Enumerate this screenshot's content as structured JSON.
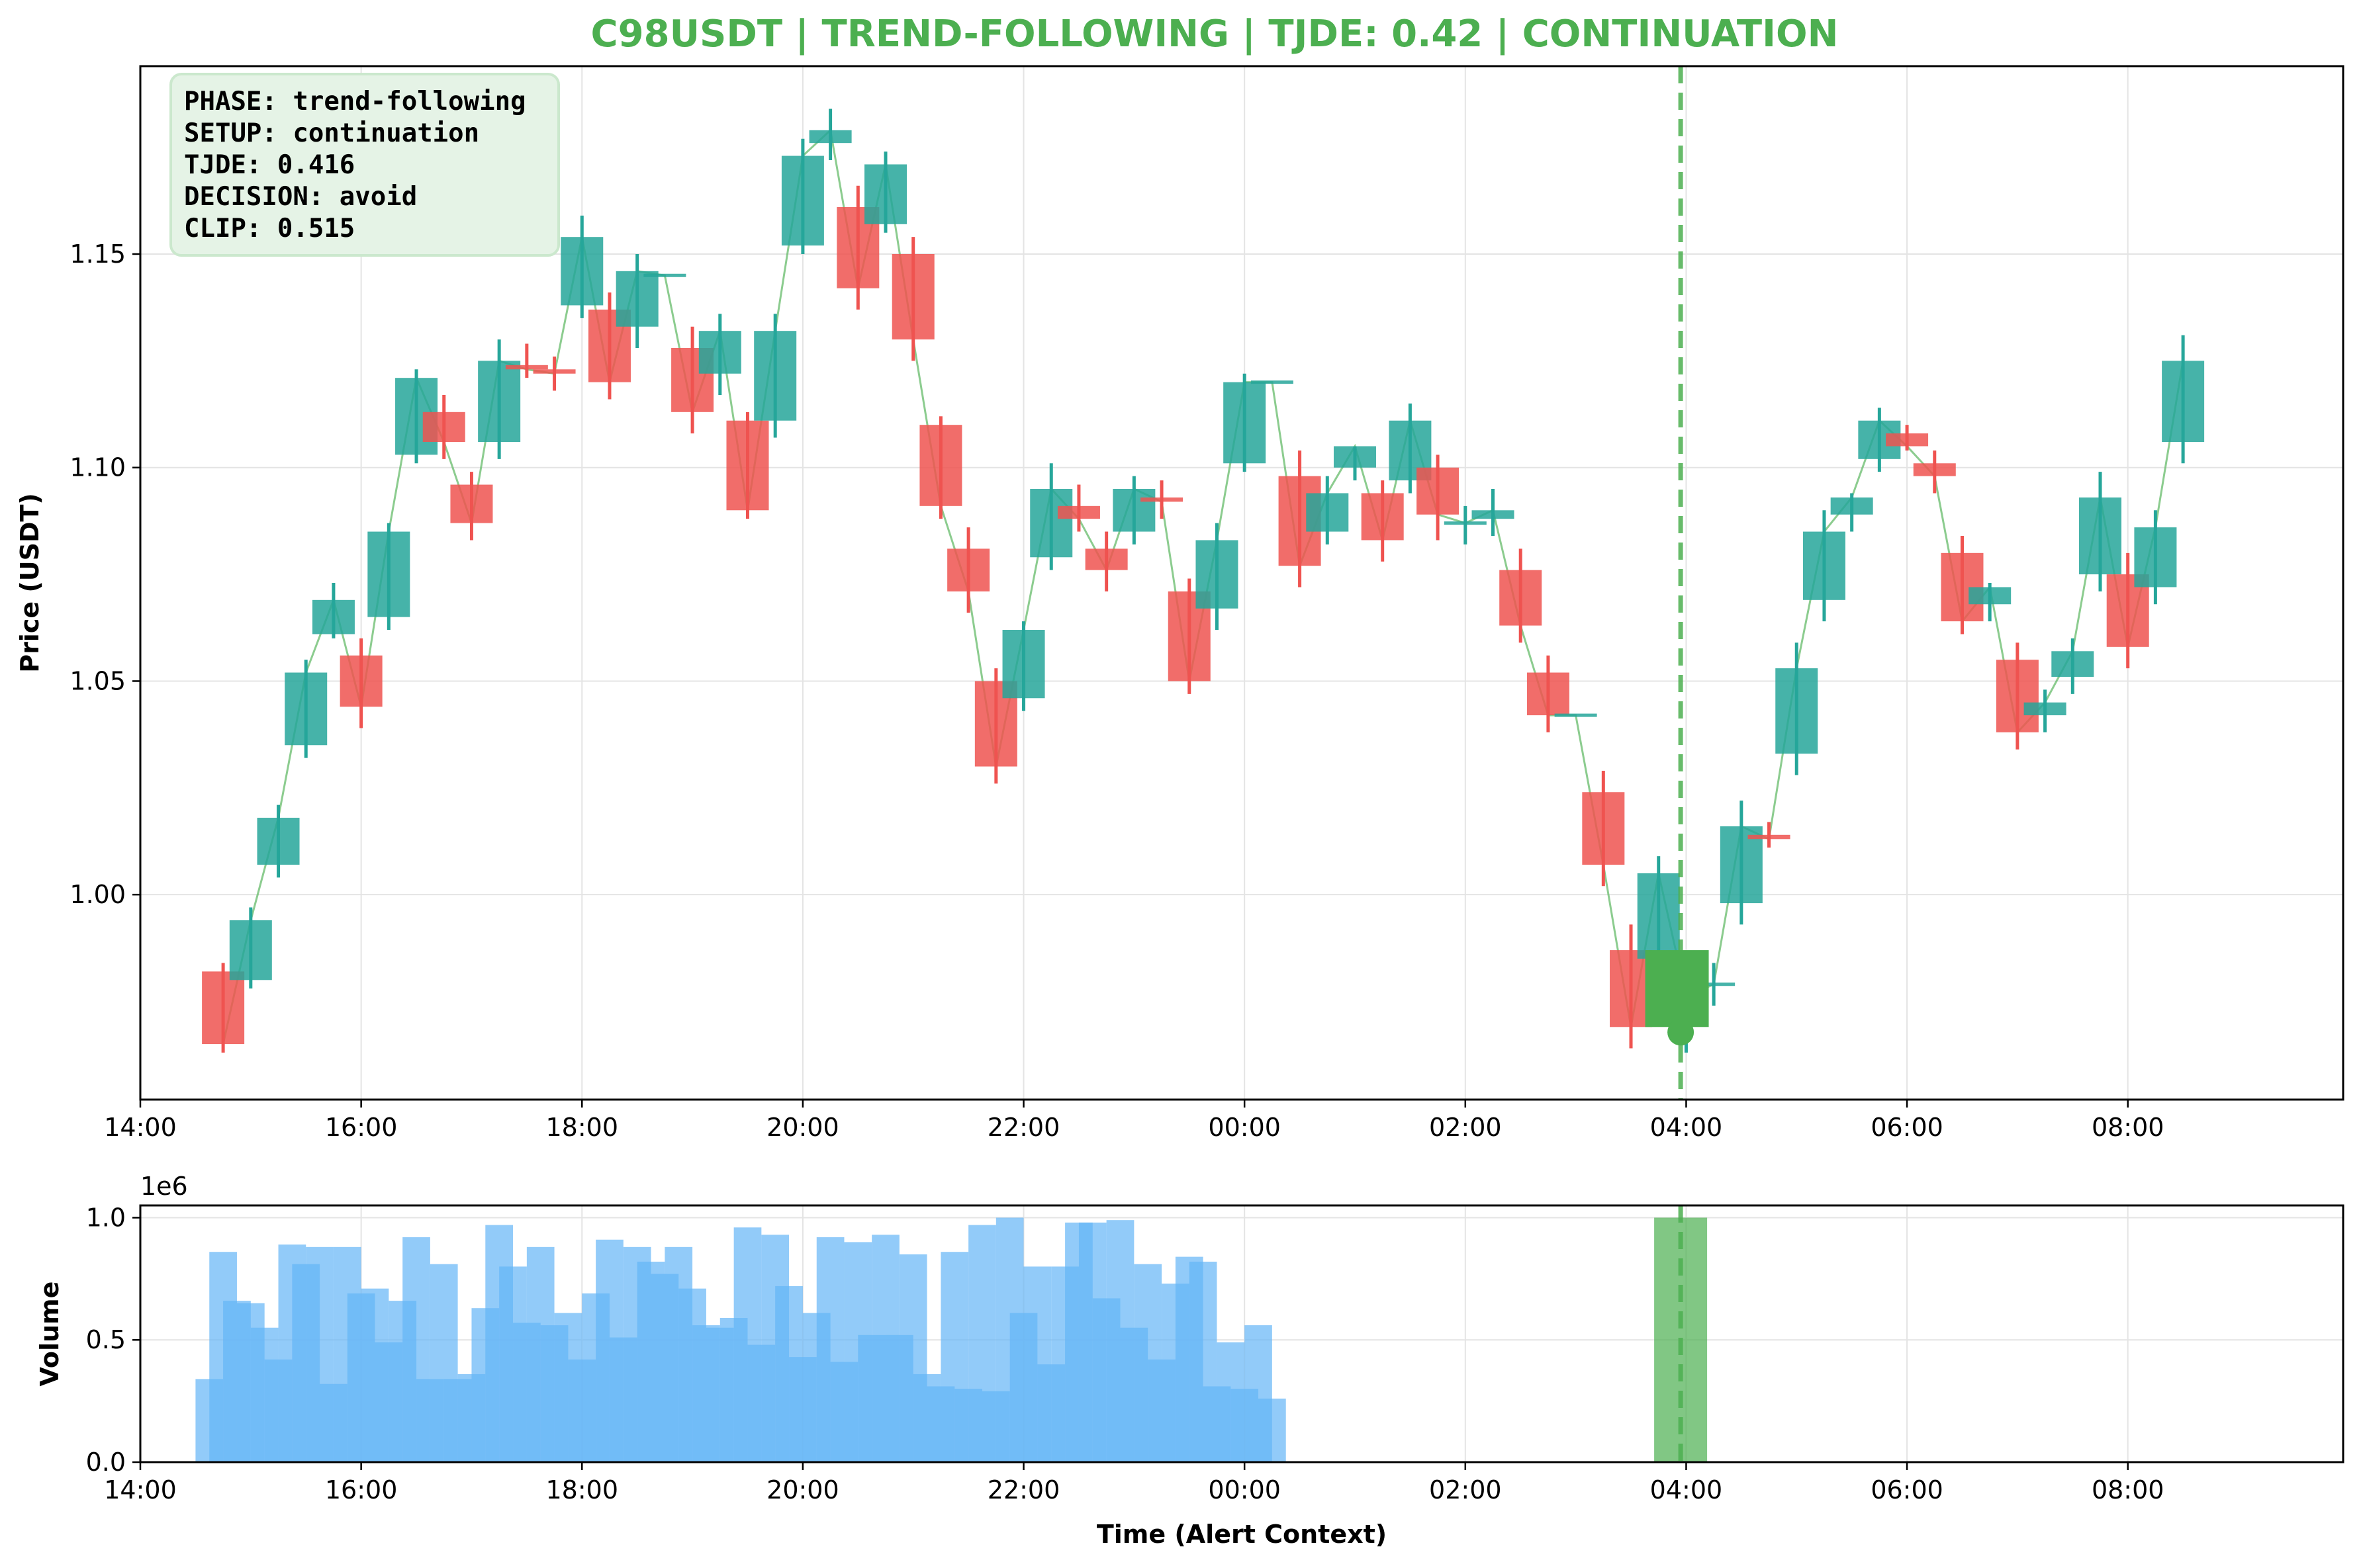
{
  "chart_data": [
    {
      "type": "candlestick",
      "title": "C98USDT | TREND-FOLLOWING | TJDE: 0.42 | CONTINUATION",
      "xlabel": "",
      "ylabel": "Price (USDT)",
      "ylim": [
        0.952,
        1.194
      ],
      "yticks": [
        "1.00",
        "1.05",
        "1.10",
        "1.15"
      ],
      "xlim": [
        "14:00",
        "09:57"
      ],
      "xticks": [
        "14:00",
        "16:00",
        "18:00",
        "20:00",
        "22:00",
        "00:00",
        "02:00",
        "04:00",
        "06:00",
        "08:00"
      ],
      "grid": true,
      "alert_time": "03:57",
      "info_box": [
        "PHASE: trend-following",
        "SETUP: continuation",
        "TJDE: 0.416",
        "DECISION: avoid",
        "CLIP: 0.515"
      ],
      "colors": {
        "up": "#26a69a",
        "down": "#ef5350",
        "alert": "#4caf50",
        "close_line": "#66bb6a",
        "title": "#4caf50"
      },
      "candles": [
        {
          "t": "14:45",
          "o": 0.982,
          "h": 0.984,
          "l": 0.963,
          "c": 0.965
        },
        {
          "t": "15:00",
          "o": 0.98,
          "h": 0.997,
          "l": 0.978,
          "c": 0.994
        },
        {
          "t": "15:15",
          "o": 1.007,
          "h": 1.021,
          "l": 1.004,
          "c": 1.018
        },
        {
          "t": "15:30",
          "o": 1.035,
          "h": 1.055,
          "l": 1.032,
          "c": 1.052
        },
        {
          "t": "15:45",
          "o": 1.061,
          "h": 1.073,
          "l": 1.06,
          "c": 1.069
        },
        {
          "t": "16:00",
          "o": 1.056,
          "h": 1.06,
          "l": 1.039,
          "c": 1.044
        },
        {
          "t": "16:15",
          "o": 1.065,
          "h": 1.087,
          "l": 1.062,
          "c": 1.085
        },
        {
          "t": "16:30",
          "o": 1.103,
          "h": 1.123,
          "l": 1.101,
          "c": 1.121
        },
        {
          "t": "16:45",
          "o": 1.113,
          "h": 1.117,
          "l": 1.102,
          "c": 1.106
        },
        {
          "t": "17:00",
          "o": 1.096,
          "h": 1.099,
          "l": 1.083,
          "c": 1.087
        },
        {
          "t": "17:15",
          "o": 1.106,
          "h": 1.13,
          "l": 1.102,
          "c": 1.125
        },
        {
          "t": "17:30",
          "o": 1.124,
          "h": 1.129,
          "l": 1.121,
          "c": 1.123
        },
        {
          "t": "17:45",
          "o": 1.123,
          "h": 1.126,
          "l": 1.118,
          "c": 1.122
        },
        {
          "t": "18:00",
          "o": 1.138,
          "h": 1.159,
          "l": 1.135,
          "c": 1.154
        },
        {
          "t": "18:15",
          "o": 1.137,
          "h": 1.141,
          "l": 1.116,
          "c": 1.12
        },
        {
          "t": "18:30",
          "o": 1.133,
          "h": 1.15,
          "l": 1.128,
          "c": 1.146
        },
        {
          "t": "18:45",
          "o": 1.145,
          "h": 1.145,
          "l": 1.145,
          "c": 1.145
        },
        {
          "t": "19:00",
          "o": 1.128,
          "h": 1.133,
          "l": 1.108,
          "c": 1.113
        },
        {
          "t": "19:15",
          "o": 1.122,
          "h": 1.136,
          "l": 1.117,
          "c": 1.132
        },
        {
          "t": "19:30",
          "o": 1.111,
          "h": 1.113,
          "l": 1.088,
          "c": 1.09
        },
        {
          "t": "19:45",
          "o": 1.111,
          "h": 1.136,
          "l": 1.107,
          "c": 1.132
        },
        {
          "t": "20:00",
          "o": 1.152,
          "h": 1.177,
          "l": 1.15,
          "c": 1.173
        },
        {
          "t": "20:15",
          "o": 1.176,
          "h": 1.184,
          "l": 1.172,
          "c": 1.179
        },
        {
          "t": "20:30",
          "o": 1.161,
          "h": 1.166,
          "l": 1.137,
          "c": 1.142
        },
        {
          "t": "20:45",
          "o": 1.157,
          "h": 1.174,
          "l": 1.155,
          "c": 1.171
        },
        {
          "t": "21:00",
          "o": 1.15,
          "h": 1.154,
          "l": 1.125,
          "c": 1.13
        },
        {
          "t": "21:15",
          "o": 1.11,
          "h": 1.112,
          "l": 1.088,
          "c": 1.091
        },
        {
          "t": "21:30",
          "o": 1.081,
          "h": 1.086,
          "l": 1.066,
          "c": 1.071
        },
        {
          "t": "21:45",
          "o": 1.05,
          "h": 1.053,
          "l": 1.026,
          "c": 1.03
        },
        {
          "t": "22:00",
          "o": 1.046,
          "h": 1.064,
          "l": 1.043,
          "c": 1.062
        },
        {
          "t": "22:15",
          "o": 1.079,
          "h": 1.101,
          "l": 1.076,
          "c": 1.095
        },
        {
          "t": "22:30",
          "o": 1.091,
          "h": 1.096,
          "l": 1.085,
          "c": 1.088
        },
        {
          "t": "22:45",
          "o": 1.081,
          "h": 1.085,
          "l": 1.071,
          "c": 1.076
        },
        {
          "t": "23:00",
          "o": 1.085,
          "h": 1.098,
          "l": 1.082,
          "c": 1.095
        },
        {
          "t": "23:15",
          "o": 1.093,
          "h": 1.097,
          "l": 1.088,
          "c": 1.092
        },
        {
          "t": "23:30",
          "o": 1.071,
          "h": 1.074,
          "l": 1.047,
          "c": 1.05
        },
        {
          "t": "23:45",
          "o": 1.067,
          "h": 1.087,
          "l": 1.062,
          "c": 1.083
        },
        {
          "t": "00:00",
          "o": 1.101,
          "h": 1.122,
          "l": 1.099,
          "c": 1.12
        },
        {
          "t": "00:15",
          "o": 1.12,
          "h": 1.12,
          "l": 1.12,
          "c": 1.12
        },
        {
          "t": "00:30",
          "o": 1.098,
          "h": 1.104,
          "l": 1.072,
          "c": 1.077
        },
        {
          "t": "00:45",
          "o": 1.085,
          "h": 1.098,
          "l": 1.082,
          "c": 1.094
        },
        {
          "t": "01:00",
          "o": 1.1,
          "h": 1.105,
          "l": 1.097,
          "c": 1.105
        },
        {
          "t": "01:15",
          "o": 1.094,
          "h": 1.097,
          "l": 1.078,
          "c": 1.083
        },
        {
          "t": "01:30",
          "o": 1.097,
          "h": 1.115,
          "l": 1.094,
          "c": 1.111
        },
        {
          "t": "01:45",
          "o": 1.1,
          "h": 1.103,
          "l": 1.083,
          "c": 1.089
        },
        {
          "t": "02:00",
          "o": 1.087,
          "h": 1.091,
          "l": 1.082,
          "c": 1.087
        },
        {
          "t": "02:15",
          "o": 1.088,
          "h": 1.095,
          "l": 1.084,
          "c": 1.09
        },
        {
          "t": "02:30",
          "o": 1.076,
          "h": 1.081,
          "l": 1.059,
          "c": 1.063
        },
        {
          "t": "02:45",
          "o": 1.052,
          "h": 1.056,
          "l": 1.038,
          "c": 1.042
        },
        {
          "t": "03:00",
          "o": 1.042,
          "h": 1.042,
          "l": 1.042,
          "c": 1.042
        },
        {
          "t": "03:15",
          "o": 1.024,
          "h": 1.029,
          "l": 1.002,
          "c": 1.007
        },
        {
          "t": "03:30",
          "o": 0.987,
          "h": 0.993,
          "l": 0.964,
          "c": 0.969
        },
        {
          "t": "03:45",
          "o": 0.985,
          "h": 1.009,
          "l": 0.982,
          "c": 1.005
        },
        {
          "t": "04:00",
          "o": 0.972,
          "h": 0.976,
          "l": 0.963,
          "c": 0.976
        },
        {
          "t": "04:15",
          "o": 0.979,
          "h": 0.984,
          "l": 0.974,
          "c": 0.979
        },
        {
          "t": "04:30",
          "o": 0.998,
          "h": 1.022,
          "l": 0.993,
          "c": 1.016
        },
        {
          "t": "04:45",
          "o": 1.014,
          "h": 1.017,
          "l": 1.011,
          "c": 1.013
        },
        {
          "t": "05:00",
          "o": 1.033,
          "h": 1.059,
          "l": 1.028,
          "c": 1.053
        },
        {
          "t": "05:15",
          "o": 1.069,
          "h": 1.09,
          "l": 1.064,
          "c": 1.085
        },
        {
          "t": "05:30",
          "o": 1.089,
          "h": 1.094,
          "l": 1.085,
          "c": 1.093
        },
        {
          "t": "05:45",
          "o": 1.102,
          "h": 1.114,
          "l": 1.099,
          "c": 1.111
        },
        {
          "t": "06:00",
          "o": 1.108,
          "h": 1.11,
          "l": 1.104,
          "c": 1.105
        },
        {
          "t": "06:15",
          "o": 1.101,
          "h": 1.104,
          "l": 1.094,
          "c": 1.098
        },
        {
          "t": "06:30",
          "o": 1.08,
          "h": 1.084,
          "l": 1.061,
          "c": 1.064
        },
        {
          "t": "06:45",
          "o": 1.068,
          "h": 1.073,
          "l": 1.064,
          "c": 1.072
        },
        {
          "t": "07:00",
          "o": 1.055,
          "h": 1.059,
          "l": 1.034,
          "c": 1.038
        },
        {
          "t": "07:15",
          "o": 1.042,
          "h": 1.048,
          "l": 1.038,
          "c": 1.045
        },
        {
          "t": "07:30",
          "o": 1.051,
          "h": 1.06,
          "l": 1.047,
          "c": 1.057
        },
        {
          "t": "07:45",
          "o": 1.075,
          "h": 1.099,
          "l": 1.071,
          "c": 1.093
        },
        {
          "t": "08:00",
          "o": 1.075,
          "h": 1.08,
          "l": 1.053,
          "c": 1.058
        },
        {
          "t": "08:15",
          "o": 1.072,
          "h": 1.09,
          "l": 1.068,
          "c": 1.086
        },
        {
          "t": "08:30",
          "o": 1.106,
          "h": 1.131,
          "l": 1.101,
          "c": 1.125
        }
      ],
      "alert_candle": {
        "t": "03:55",
        "o": 0.987,
        "h": 0.987,
        "l": 0.969,
        "c": 0.969
      }
    },
    {
      "type": "bar",
      "xlabel": "Time (Alert Context)",
      "ylabel": "Volume",
      "scale_label": "1e6",
      "ylim": [
        0,
        1.05
      ],
      "yticks": [
        "0.0",
        "0.5",
        "1.0"
      ],
      "xlim": [
        "14:00",
        "09:57"
      ],
      "xticks": [
        "14:00",
        "16:00",
        "18:00",
        "20:00",
        "22:00",
        "00:00",
        "02:00",
        "04:00",
        "06:00",
        "08:00"
      ],
      "grid": true,
      "alert_time": "03:57",
      "colors": {
        "bar": "#64b5f6",
        "alert_bar": "#4caf50"
      },
      "values": [
        0.34,
        0.86,
        0.66,
        0.65,
        0.55,
        0.42,
        0.89,
        0.81,
        0.88,
        0.32,
        0.88,
        0.69,
        0.71,
        0.49,
        0.66,
        0.92,
        0.34,
        0.81,
        0.34,
        0.36,
        0.63,
        0.97,
        0.8,
        0.57,
        0.88,
        0.56,
        0.61,
        0.42,
        0.69,
        0.91,
        0.51,
        0.88,
        0.82,
        0.77,
        0.88,
        0.71,
        0.56,
        0.55,
        0.59,
        0.96,
        0.48,
        0.93,
        0.72,
        0.43,
        0.61,
        0.92,
        0.41,
        0.9,
        0.52,
        0.93,
        0.52,
        0.85,
        0.36,
        0.31,
        0.86,
        0.3,
        0.97,
        0.29,
        1.0,
        0.61,
        0.8,
        0.4,
        0.8,
        0.98,
        0.98,
        0.67,
        0.99,
        0.55,
        0.81,
        0.42,
        0.73,
        0.84,
        0.82,
        0.31,
        0.49,
        0.3,
        0.56,
        0.26
      ],
      "alert_value": 1.0
    }
  ]
}
